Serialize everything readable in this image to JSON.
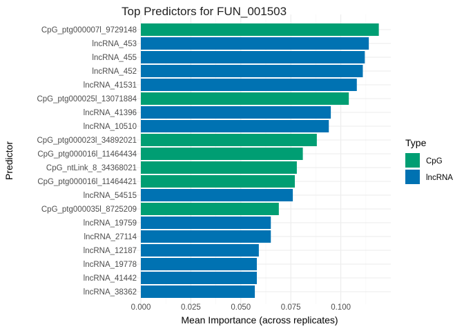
{
  "chart_data": {
    "type": "bar",
    "orientation": "horizontal",
    "title": "Top Predictors for FUN_001503",
    "xlabel": "Mean Importance (across replicates)",
    "ylabel": "Predictor",
    "xlim": [
      0,
      0.125
    ],
    "xticks": [
      0,
      0.025,
      0.05,
      0.075,
      0.1
    ],
    "xtick_labels": [
      "0.000",
      "0.025",
      "0.050",
      "0.075",
      "0.100"
    ],
    "grid": true,
    "legend": {
      "title": "Type",
      "placement": "right",
      "entries": [
        {
          "label": "CpG",
          "color": "#009E73"
        },
        {
          "label": "lncRNA",
          "color": "#0072B2"
        }
      ]
    },
    "categories": [
      "CpG_ptg000007l_9729148",
      "lncRNA_453",
      "lncRNA_455",
      "lncRNA_452",
      "lncRNA_41531",
      "CpG_ptg000025l_13071884",
      "lncRNA_41396",
      "lncRNA_10510",
      "CpG_ptg000023l_34892021",
      "CpG_ptg000016l_11464434",
      "CpG_ntLink_8_34368021",
      "CpG_ptg000016l_11464421",
      "lncRNA_54515",
      "CpG_ptg000035l_8725209",
      "lncRNA_19759",
      "lncRNA_27114",
      "lncRNA_12187",
      "lncRNA_19778",
      "lncRNA_41442",
      "lncRNA_38362"
    ],
    "values": [
      0.119,
      0.114,
      0.112,
      0.111,
      0.108,
      0.104,
      0.095,
      0.094,
      0.088,
      0.081,
      0.078,
      0.077,
      0.076,
      0.069,
      0.065,
      0.065,
      0.059,
      0.058,
      0.058,
      0.057
    ],
    "types": [
      "CpG",
      "lncRNA",
      "lncRNA",
      "lncRNA",
      "lncRNA",
      "CpG",
      "lncRNA",
      "lncRNA",
      "CpG",
      "CpG",
      "CpG",
      "CpG",
      "lncRNA",
      "CpG",
      "lncRNA",
      "lncRNA",
      "lncRNA",
      "lncRNA",
      "lncRNA",
      "lncRNA"
    ]
  }
}
